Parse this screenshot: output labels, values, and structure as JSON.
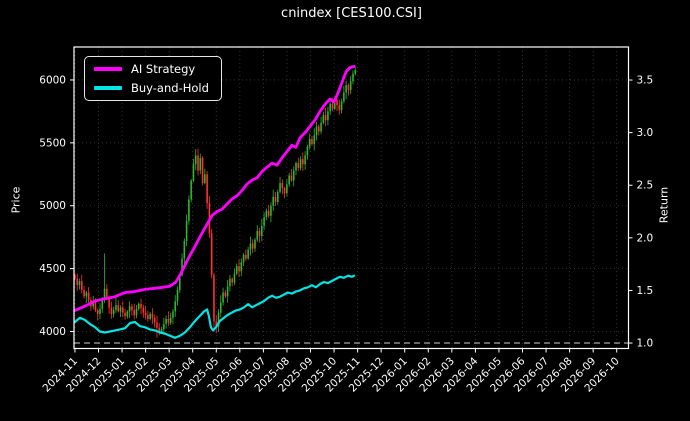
{
  "chart_data": {
    "type": "candlestick+line",
    "title": "cnindex [CES100.CSI]",
    "ylabel_left": "Price",
    "ylabel_right": "Return",
    "background_color": "#000000",
    "spine_color": "#ffffff",
    "grid": true,
    "grid_color": "#3c3c3c",
    "reference_line": {
      "axis": "return",
      "value": 1.0,
      "color": "#cccccc",
      "style": "dashed"
    },
    "x_tick_labels": [
      "2024-11",
      "2024-12",
      "2025-01",
      "2025-02",
      "2025-03",
      "2025-04",
      "2025-05",
      "2025-06",
      "2025-07",
      "2025-08",
      "2025-09",
      "2025-10",
      "2025-11",
      "2025-12",
      "2026-01",
      "2026-02",
      "2026-03",
      "2026-04",
      "2026-05",
      "2026-06",
      "2026-07",
      "2026-08",
      "2026-09",
      "2026-10"
    ],
    "price_ticks": [
      4000,
      4500,
      5000,
      5500,
      6000
    ],
    "return_ticks": [
      "1.0",
      "1.5",
      "2.0",
      "2.5",
      "3.0",
      "3.5"
    ],
    "return_tick_values": [
      1.0,
      1.5,
      2.0,
      2.5,
      3.0,
      3.5
    ],
    "price_ylim": [
      3865,
      6262
    ],
    "return_ylim": [
      0.948,
      3.814
    ],
    "x_range_months": [
      -0.04,
      23.5
    ],
    "legend_position": "upper left",
    "series": [
      {
        "name": "AI Strategy",
        "color": "#ff00ff",
        "axis": "return",
        "width": 2.8,
        "points": [
          [
            0,
            1.31
          ],
          [
            0.42,
            1.35
          ],
          [
            0.85,
            1.4
          ],
          [
            1.27,
            1.42
          ],
          [
            1.7,
            1.44
          ],
          [
            2.12,
            1.48
          ],
          [
            2.55,
            1.49
          ],
          [
            2.97,
            1.51
          ],
          [
            3.4,
            1.52
          ],
          [
            3.74,
            1.53
          ],
          [
            4.03,
            1.54
          ],
          [
            4.29,
            1.58
          ],
          [
            4.54,
            1.68
          ],
          [
            4.8,
            1.8
          ],
          [
            5.05,
            1.9
          ],
          [
            5.31,
            2.01
          ],
          [
            5.56,
            2.11
          ],
          [
            5.82,
            2.21
          ],
          [
            6.03,
            2.25
          ],
          [
            6.24,
            2.27
          ],
          [
            6.45,
            2.32
          ],
          [
            6.67,
            2.37
          ],
          [
            6.88,
            2.4
          ],
          [
            7.09,
            2.45
          ],
          [
            7.3,
            2.51
          ],
          [
            7.52,
            2.55
          ],
          [
            7.73,
            2.57
          ],
          [
            7.94,
            2.63
          ],
          [
            8.15,
            2.67
          ],
          [
            8.37,
            2.71
          ],
          [
            8.58,
            2.69
          ],
          [
            8.79,
            2.76
          ],
          [
            9.0,
            2.82
          ],
          [
            9.21,
            2.88
          ],
          [
            9.38,
            2.86
          ],
          [
            9.55,
            2.95
          ],
          [
            9.77,
            3.0
          ],
          [
            9.98,
            3.06
          ],
          [
            10.19,
            3.12
          ],
          [
            10.4,
            3.2
          ],
          [
            10.62,
            3.27
          ],
          [
            10.83,
            3.32
          ],
          [
            11.0,
            3.29
          ],
          [
            11.17,
            3.38
          ],
          [
            11.34,
            3.48
          ],
          [
            11.51,
            3.58
          ],
          [
            11.68,
            3.62
          ],
          [
            11.85,
            3.63
          ]
        ]
      },
      {
        "name": "Buy-and-Hold",
        "color": "#00e5e5",
        "axis": "return",
        "width": 2.2,
        "points": [
          [
            0,
            1.2
          ],
          [
            0.21,
            1.24
          ],
          [
            0.42,
            1.22
          ],
          [
            0.64,
            1.18
          ],
          [
            0.85,
            1.15
          ],
          [
            1.06,
            1.11
          ],
          [
            1.27,
            1.1
          ],
          [
            1.49,
            1.11
          ],
          [
            1.7,
            1.12
          ],
          [
            1.91,
            1.13
          ],
          [
            2.12,
            1.14
          ],
          [
            2.34,
            1.19
          ],
          [
            2.55,
            1.2
          ],
          [
            2.76,
            1.16
          ],
          [
            2.97,
            1.15
          ],
          [
            3.18,
            1.13
          ],
          [
            3.4,
            1.12
          ],
          [
            3.61,
            1.1
          ],
          [
            3.82,
            1.09
          ],
          [
            4.25,
            1.05
          ],
          [
            4.46,
            1.07
          ],
          [
            4.67,
            1.1
          ],
          [
            4.88,
            1.15
          ],
          [
            5.1,
            1.21
          ],
          [
            5.31,
            1.26
          ],
          [
            5.48,
            1.3
          ],
          [
            5.61,
            1.32
          ],
          [
            5.69,
            1.25
          ],
          [
            5.77,
            1.15
          ],
          [
            5.86,
            1.12
          ],
          [
            5.99,
            1.15
          ],
          [
            6.16,
            1.21
          ],
          [
            6.33,
            1.24
          ],
          [
            6.5,
            1.27
          ],
          [
            6.67,
            1.29
          ],
          [
            6.84,
            1.31
          ],
          [
            7.01,
            1.32
          ],
          [
            7.18,
            1.34
          ],
          [
            7.35,
            1.37
          ],
          [
            7.52,
            1.34
          ],
          [
            7.69,
            1.36
          ],
          [
            7.86,
            1.38
          ],
          [
            8.03,
            1.4
          ],
          [
            8.2,
            1.43
          ],
          [
            8.37,
            1.45
          ],
          [
            8.54,
            1.43
          ],
          [
            8.7,
            1.44
          ],
          [
            8.87,
            1.46
          ],
          [
            9.04,
            1.48
          ],
          [
            9.21,
            1.47
          ],
          [
            9.38,
            1.49
          ],
          [
            9.55,
            1.5
          ],
          [
            9.72,
            1.52
          ],
          [
            9.89,
            1.53
          ],
          [
            10.06,
            1.55
          ],
          [
            10.23,
            1.53
          ],
          [
            10.4,
            1.56
          ],
          [
            10.57,
            1.58
          ],
          [
            10.74,
            1.57
          ],
          [
            10.91,
            1.59
          ],
          [
            11.08,
            1.61
          ],
          [
            11.25,
            1.63
          ],
          [
            11.42,
            1.62
          ],
          [
            11.59,
            1.64
          ],
          [
            11.76,
            1.63
          ],
          [
            11.85,
            1.64
          ]
        ]
      }
    ],
    "candles": {
      "axis": "price",
      "color_up": "#2db82d",
      "color_down": "#ff3232",
      "x_start_month": 0,
      "x_step_month": 0.09675,
      "first_open": 4450,
      "closes": [
        4420,
        4370,
        4400,
        4330,
        4280,
        4310,
        4250,
        4200,
        4230,
        4170,
        4140,
        4180,
        4250,
        4340,
        4270,
        4190,
        4140,
        4170,
        4210,
        4160,
        4190,
        4150,
        4120,
        4160,
        4200,
        4170,
        4130,
        4180,
        4220,
        4190,
        4150,
        4130,
        4100,
        4140,
        4110,
        4070,
        4030,
        3990,
        4020,
        4060,
        4100,
        4070,
        4110,
        4160,
        4240,
        4330,
        4450,
        4580,
        4720,
        4880,
        5050,
        5200,
        5330,
        5400,
        5280,
        5380,
        5180,
        5250,
        5020,
        4780,
        4450,
        4080,
        4040,
        4150,
        4230,
        4310,
        4280,
        4360,
        4420,
        4390,
        4460,
        4520,
        4480,
        4550,
        4610,
        4580,
        4650,
        4700,
        4660,
        4730,
        4800,
        4760,
        4840,
        4910,
        4960,
        4920,
        5000,
        5070,
        5030,
        5110,
        5180,
        5140,
        5100,
        5170,
        5240,
        5200,
        5280,
        5340,
        5300,
        5370,
        5330,
        5400,
        5470,
        5530,
        5490,
        5560,
        5630,
        5590,
        5660,
        5720,
        5680,
        5750,
        5810,
        5770,
        5840,
        5800,
        5760,
        5830,
        5900,
        5960,
        5920,
        5990,
        6050,
        6080
      ],
      "wick_overrides": {
        "13": {
          "high": 4620
        },
        "36": {
          "low": 3950
        },
        "53": {
          "high": 5450
        },
        "61": {
          "low": 4000
        },
        "123": {
          "high": 6110
        }
      }
    }
  }
}
